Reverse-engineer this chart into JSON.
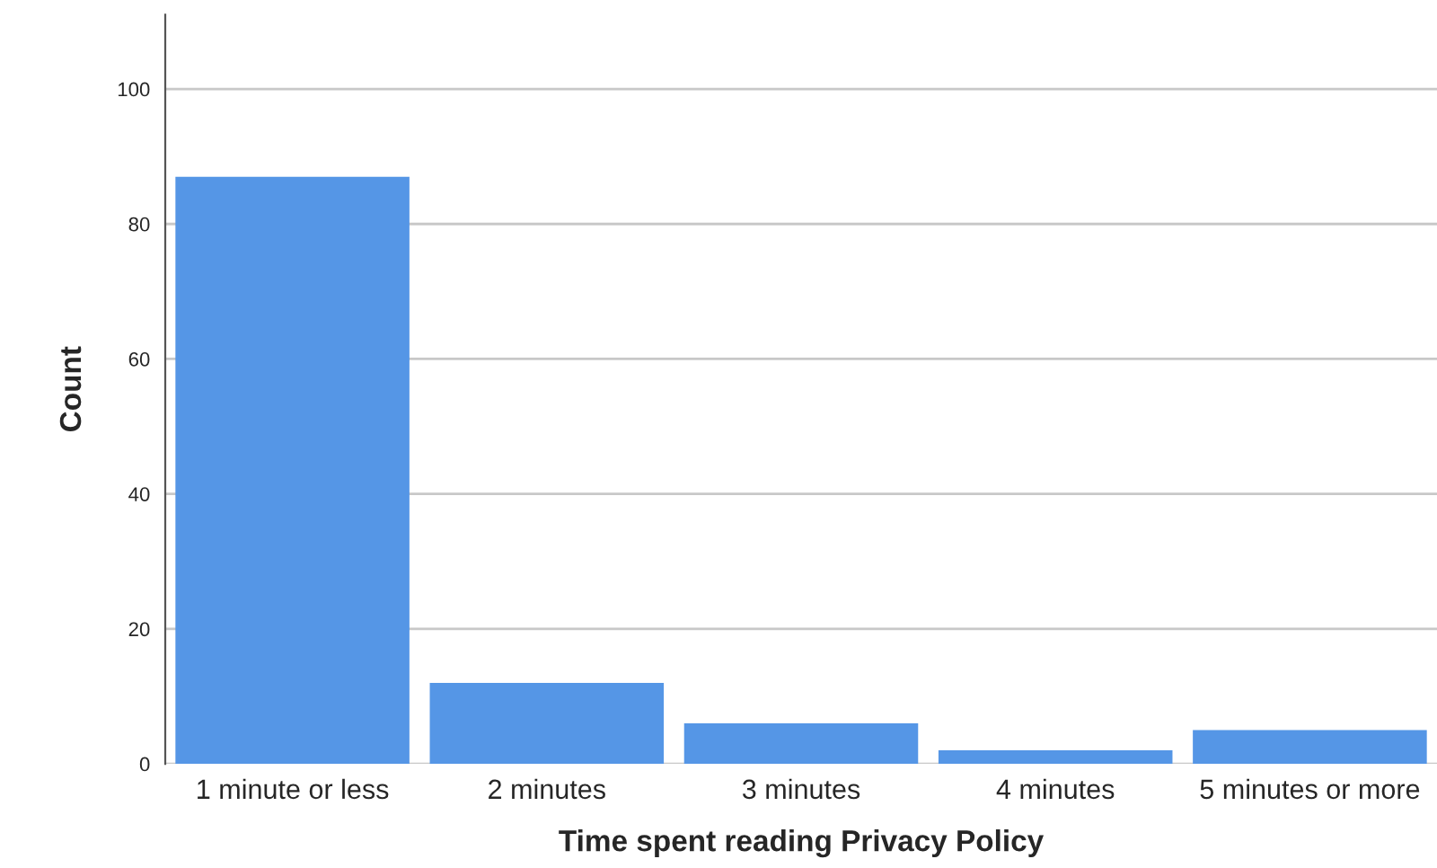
{
  "chart_data": {
    "type": "bar",
    "xlabel": "Time spent reading Privacy Policy",
    "ylabel": "Count",
    "categories": [
      "1 minute or less",
      "2 minutes",
      "3 minutes",
      "4 minutes",
      "5 minutes or more"
    ],
    "values": [
      87,
      12,
      6,
      2,
      5
    ],
    "color": "#5596e6",
    "ylim": [
      0,
      111
    ],
    "yticks": [
      0,
      20,
      40,
      60,
      80,
      100
    ],
    "grid": "y"
  }
}
